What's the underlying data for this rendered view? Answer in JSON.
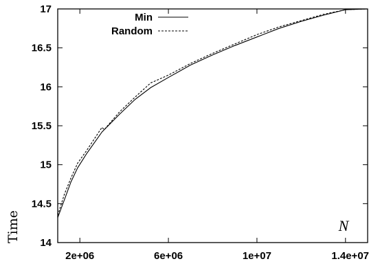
{
  "chart_data": {
    "type": "line",
    "title": "",
    "xlabel": "N",
    "ylabel": "Time",
    "xlim": [
      1000000,
      15000000
    ],
    "ylim": [
      14,
      17
    ],
    "x_ticks": [
      {
        "value": 2000000,
        "label": "2e+06"
      },
      {
        "value": 6000000,
        "label": "6e+06"
      },
      {
        "value": 10000000,
        "label": "1e+07"
      },
      {
        "value": 14000000,
        "label": "1.4e+07"
      }
    ],
    "y_ticks": [
      {
        "value": 14,
        "label": "14"
      },
      {
        "value": 14.5,
        "label": "14.5"
      },
      {
        "value": 15,
        "label": "15"
      },
      {
        "value": 15.5,
        "label": "15.5"
      },
      {
        "value": 16,
        "label": "16"
      },
      {
        "value": 16.5,
        "label": "16.5"
      },
      {
        "value": 17,
        "label": "17"
      }
    ],
    "grid": false,
    "legend_position": "top-left",
    "series": [
      {
        "name": "Min",
        "style": "solid",
        "color": "#000000",
        "points": [
          [
            1000000,
            14.32
          ],
          [
            1300000,
            14.55
          ],
          [
            1600000,
            14.78
          ],
          [
            1900000,
            14.96
          ],
          [
            2300000,
            15.14
          ],
          [
            3000000,
            15.42
          ],
          [
            3800000,
            15.65
          ],
          [
            4500000,
            15.84
          ],
          [
            5200000,
            15.99
          ],
          [
            6000000,
            16.12
          ],
          [
            7000000,
            16.28
          ],
          [
            8000000,
            16.41
          ],
          [
            9000000,
            16.53
          ],
          [
            10000000,
            16.64
          ],
          [
            11000000,
            16.75
          ],
          [
            12000000,
            16.84
          ],
          [
            13000000,
            16.92
          ],
          [
            14000000,
            16.99
          ],
          [
            15000000,
            17.0
          ]
        ]
      },
      {
        "name": "Random",
        "style": "dashed",
        "color": "#000000",
        "points": [
          [
            1000000,
            14.35
          ],
          [
            1300000,
            14.62
          ],
          [
            1600000,
            14.83
          ],
          [
            1900000,
            15.02
          ],
          [
            2300000,
            15.18
          ],
          [
            3000000,
            15.48
          ],
          [
            3100000,
            15.45
          ],
          [
            3800000,
            15.68
          ],
          [
            4500000,
            15.87
          ],
          [
            5200000,
            16.05
          ],
          [
            6000000,
            16.15
          ],
          [
            7000000,
            16.3
          ],
          [
            8000000,
            16.43
          ],
          [
            9000000,
            16.55
          ],
          [
            10000000,
            16.67
          ],
          [
            11000000,
            16.77
          ],
          [
            12000000,
            16.85
          ],
          [
            13000000,
            16.93
          ],
          [
            14000000,
            16.99
          ],
          [
            15000000,
            17.0
          ]
        ]
      }
    ]
  }
}
